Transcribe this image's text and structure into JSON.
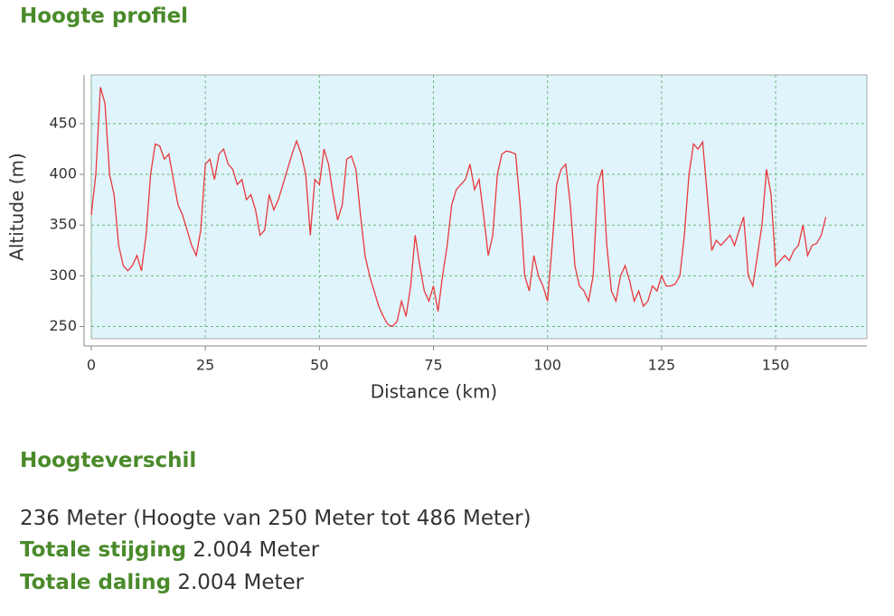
{
  "header": {
    "title": "Hoogte profiel"
  },
  "chart_data": {
    "type": "line",
    "x_label": "Distance (km)",
    "y_label": "Altitude (m)",
    "x": [
      0,
      1,
      2,
      3,
      4,
      5,
      6,
      7,
      8,
      9,
      10,
      11,
      12,
      13,
      14,
      15,
      16,
      17,
      18,
      19,
      20,
      21,
      22,
      23,
      24,
      25,
      26,
      27,
      28,
      29,
      30,
      31,
      32,
      33,
      34,
      35,
      36,
      37,
      38,
      39,
      40,
      41,
      42,
      43,
      44,
      45,
      46,
      47,
      48,
      49,
      50,
      51,
      52,
      53,
      54,
      55,
      56,
      57,
      58,
      59,
      60,
      61,
      62,
      63,
      64,
      65,
      66,
      67,
      68,
      69,
      70,
      71,
      72,
      73,
      74,
      75,
      76,
      77,
      78,
      79,
      80,
      81,
      82,
      83,
      84,
      85,
      86,
      87,
      88,
      89,
      90,
      91,
      92,
      93,
      94,
      95,
      96,
      97,
      98,
      99,
      100,
      101,
      102,
      103,
      104,
      105,
      106,
      107,
      108,
      109,
      110,
      111,
      112,
      113,
      114,
      115,
      116,
      117,
      118,
      119,
      120,
      121,
      122,
      123,
      124,
      125,
      126,
      127,
      128,
      129,
      130,
      131,
      132,
      133,
      134,
      135,
      136,
      137,
      138,
      139,
      140,
      141,
      142,
      143,
      144,
      145,
      146,
      147,
      148,
      149,
      150,
      151,
      152,
      153,
      154,
      155,
      156,
      157,
      158,
      159,
      160,
      161
    ],
    "values": [
      360,
      400,
      486,
      470,
      400,
      380,
      330,
      310,
      305,
      310,
      320,
      305,
      340,
      400,
      430,
      428,
      415,
      420,
      395,
      370,
      360,
      345,
      330,
      320,
      345,
      410,
      415,
      395,
      420,
      425,
      410,
      405,
      390,
      395,
      375,
      380,
      365,
      340,
      345,
      380,
      365,
      375,
      390,
      405,
      420,
      433,
      420,
      400,
      340,
      395,
      390,
      425,
      410,
      380,
      355,
      370,
      415,
      418,
      405,
      360,
      320,
      300,
      285,
      270,
      260,
      252,
      250,
      255,
      275,
      260,
      290,
      340,
      310,
      285,
      275,
      290,
      265,
      300,
      330,
      370,
      385,
      390,
      395,
      410,
      385,
      395,
      360,
      320,
      340,
      400,
      420,
      423,
      422,
      420,
      370,
      300,
      285,
      320,
      300,
      290,
      275,
      330,
      390,
      405,
      410,
      370,
      310,
      290,
      285,
      275,
      300,
      390,
      405,
      330,
      285,
      275,
      300,
      310,
      295,
      275,
      285,
      270,
      275,
      290,
      285,
      300,
      290,
      290,
      292,
      300,
      340,
      400,
      430,
      425,
      432,
      380,
      325,
      335,
      330,
      335,
      340,
      330,
      345,
      358,
      300,
      290,
      320,
      350,
      405,
      380,
      310,
      315,
      320,
      315,
      325,
      330,
      350,
      320,
      330,
      332,
      340,
      358
    ],
    "color": "#e8393b",
    "xlim": [
      0,
      170
    ],
    "ylim": [
      238,
      498
    ],
    "xticks": [
      0,
      25,
      50,
      75,
      100,
      125,
      150
    ],
    "yticks": [
      250,
      300,
      350,
      400,
      450
    ],
    "grid": true
  },
  "section": {
    "title": "Hoogteverschil",
    "summary": "236 Meter (Hoogte van 250 Meter tot 486 Meter)",
    "rows": [
      {
        "label": "Totale stijging",
        "value": "2.004 Meter"
      },
      {
        "label": "Totale daling",
        "value": "2.004 Meter"
      }
    ]
  }
}
